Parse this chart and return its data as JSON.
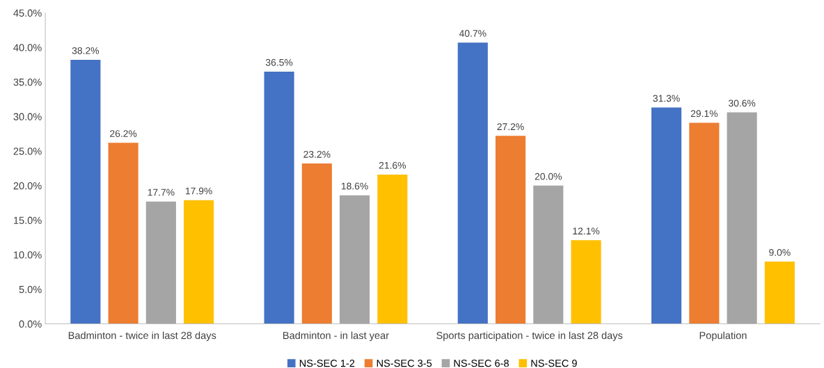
{
  "chart_data": {
    "type": "bar",
    "categories": [
      "Badminton - twice in last 28 days",
      "Badminton - in last year",
      "Sports participation - twice in last 28 days",
      "Population"
    ],
    "series": [
      {
        "name": "NS-SEC 1-2",
        "color": "#4472c4",
        "values": [
          38.2,
          36.5,
          40.7,
          31.3
        ],
        "value_labels": [
          "38.2%",
          "36.5%",
          "40.7%",
          "31.3%"
        ]
      },
      {
        "name": "NS-SEC 3-5",
        "color": "#ed7d31",
        "values": [
          26.2,
          23.2,
          27.2,
          29.1
        ],
        "value_labels": [
          "26.2%",
          "23.2%",
          "27.2%",
          "29.1%"
        ]
      },
      {
        "name": "NS-SEC 6-8",
        "color": "#a5a5a5",
        "values": [
          17.7,
          18.6,
          20.0,
          30.6
        ],
        "value_labels": [
          "17.7%",
          "18.6%",
          "20.0%",
          "30.6%"
        ]
      },
      {
        "name": "NS-SEC 9",
        "color": "#ffc000",
        "values": [
          17.9,
          21.6,
          12.1,
          9.0
        ],
        "value_labels": [
          "17.9%",
          "21.6%",
          "12.1%",
          "9.0%"
        ]
      }
    ],
    "ylim": [
      0,
      45
    ],
    "yticks": [
      {
        "value": 0,
        "label": "0.0%"
      },
      {
        "value": 5,
        "label": "5.0%"
      },
      {
        "value": 10,
        "label": "10.0%"
      },
      {
        "value": 15,
        "label": "15.0%"
      },
      {
        "value": 20,
        "label": "20.0%"
      },
      {
        "value": 25,
        "label": "25.0%"
      },
      {
        "value": 30,
        "label": "30.0%"
      },
      {
        "value": 35,
        "label": "35.0%"
      },
      {
        "value": 40,
        "label": "40.0%"
      },
      {
        "value": 45,
        "label": "45.0%"
      }
    ],
    "grid": false,
    "legend": "bottom"
  }
}
